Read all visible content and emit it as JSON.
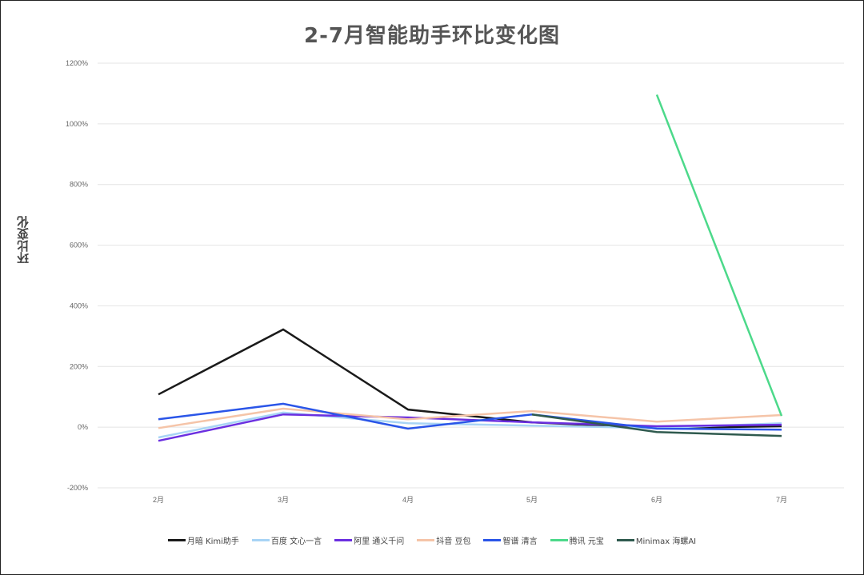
{
  "chart_data": {
    "type": "line",
    "title": "2-7月智能助手环比变化图",
    "xlabel": "",
    "ylabel": "环比变化",
    "categories": [
      "2月",
      "3月",
      "4月",
      "5月",
      "6月",
      "7月"
    ],
    "ylim": [
      -200,
      1200
    ],
    "yticks": [
      "1200%",
      "1000%",
      "800%",
      "600%",
      "400%",
      "200%",
      "0%",
      "-200%"
    ],
    "grid": true,
    "legend_position": "bottom",
    "series": [
      {
        "name": "月暗 Kimi助手",
        "color": "#1a1a1a",
        "values": [
          108,
          322,
          58,
          16,
          -3,
          3
        ]
      },
      {
        "name": "百度 文心一言",
        "color": "#a8d4f5",
        "values": [
          -34,
          48,
          13,
          5,
          -3,
          13
        ]
      },
      {
        "name": "阿里 通义千问",
        "color": "#6b2fe0",
        "values": [
          -45,
          42,
          32,
          16,
          3,
          8
        ]
      },
      {
        "name": "抖音 豆包",
        "color": "#f5c4a8",
        "values": [
          -3,
          61,
          26,
          53,
          18,
          40
        ]
      },
      {
        "name": "智谱 清言",
        "color": "#2a55e8",
        "values": [
          26,
          77,
          -5,
          42,
          -5,
          -8
        ]
      },
      {
        "name": "腾讯 元宝",
        "color": "#4cd98a",
        "values": [
          null,
          null,
          null,
          null,
          1096,
          37
        ]
      },
      {
        "name": "Minimax 海螺AI",
        "color": "#2f5a4e",
        "values": [
          null,
          null,
          null,
          42,
          -16,
          -29
        ]
      }
    ]
  }
}
